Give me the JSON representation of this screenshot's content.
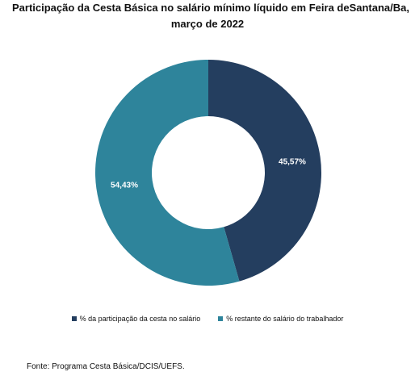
{
  "chart_data": {
    "type": "pie",
    "title_line1": "Participação da Cesta Básica no salário mínimo líquido em Feira deSantana/Ba,",
    "title_line2": "março de 2022",
    "slices": [
      {
        "name": "% da participação da cesta no salário",
        "value": 45.57,
        "label": "45,57%",
        "color": "#243e5f"
      },
      {
        "name": "% restante do salário do trabalhador",
        "value": 54.43,
        "label": "54,43%",
        "color": "#2e849b"
      }
    ],
    "legend_position": "bottom",
    "donut": true
  },
  "source": "Fonte: Programa Cesta Básica/DCIS/UEFS."
}
